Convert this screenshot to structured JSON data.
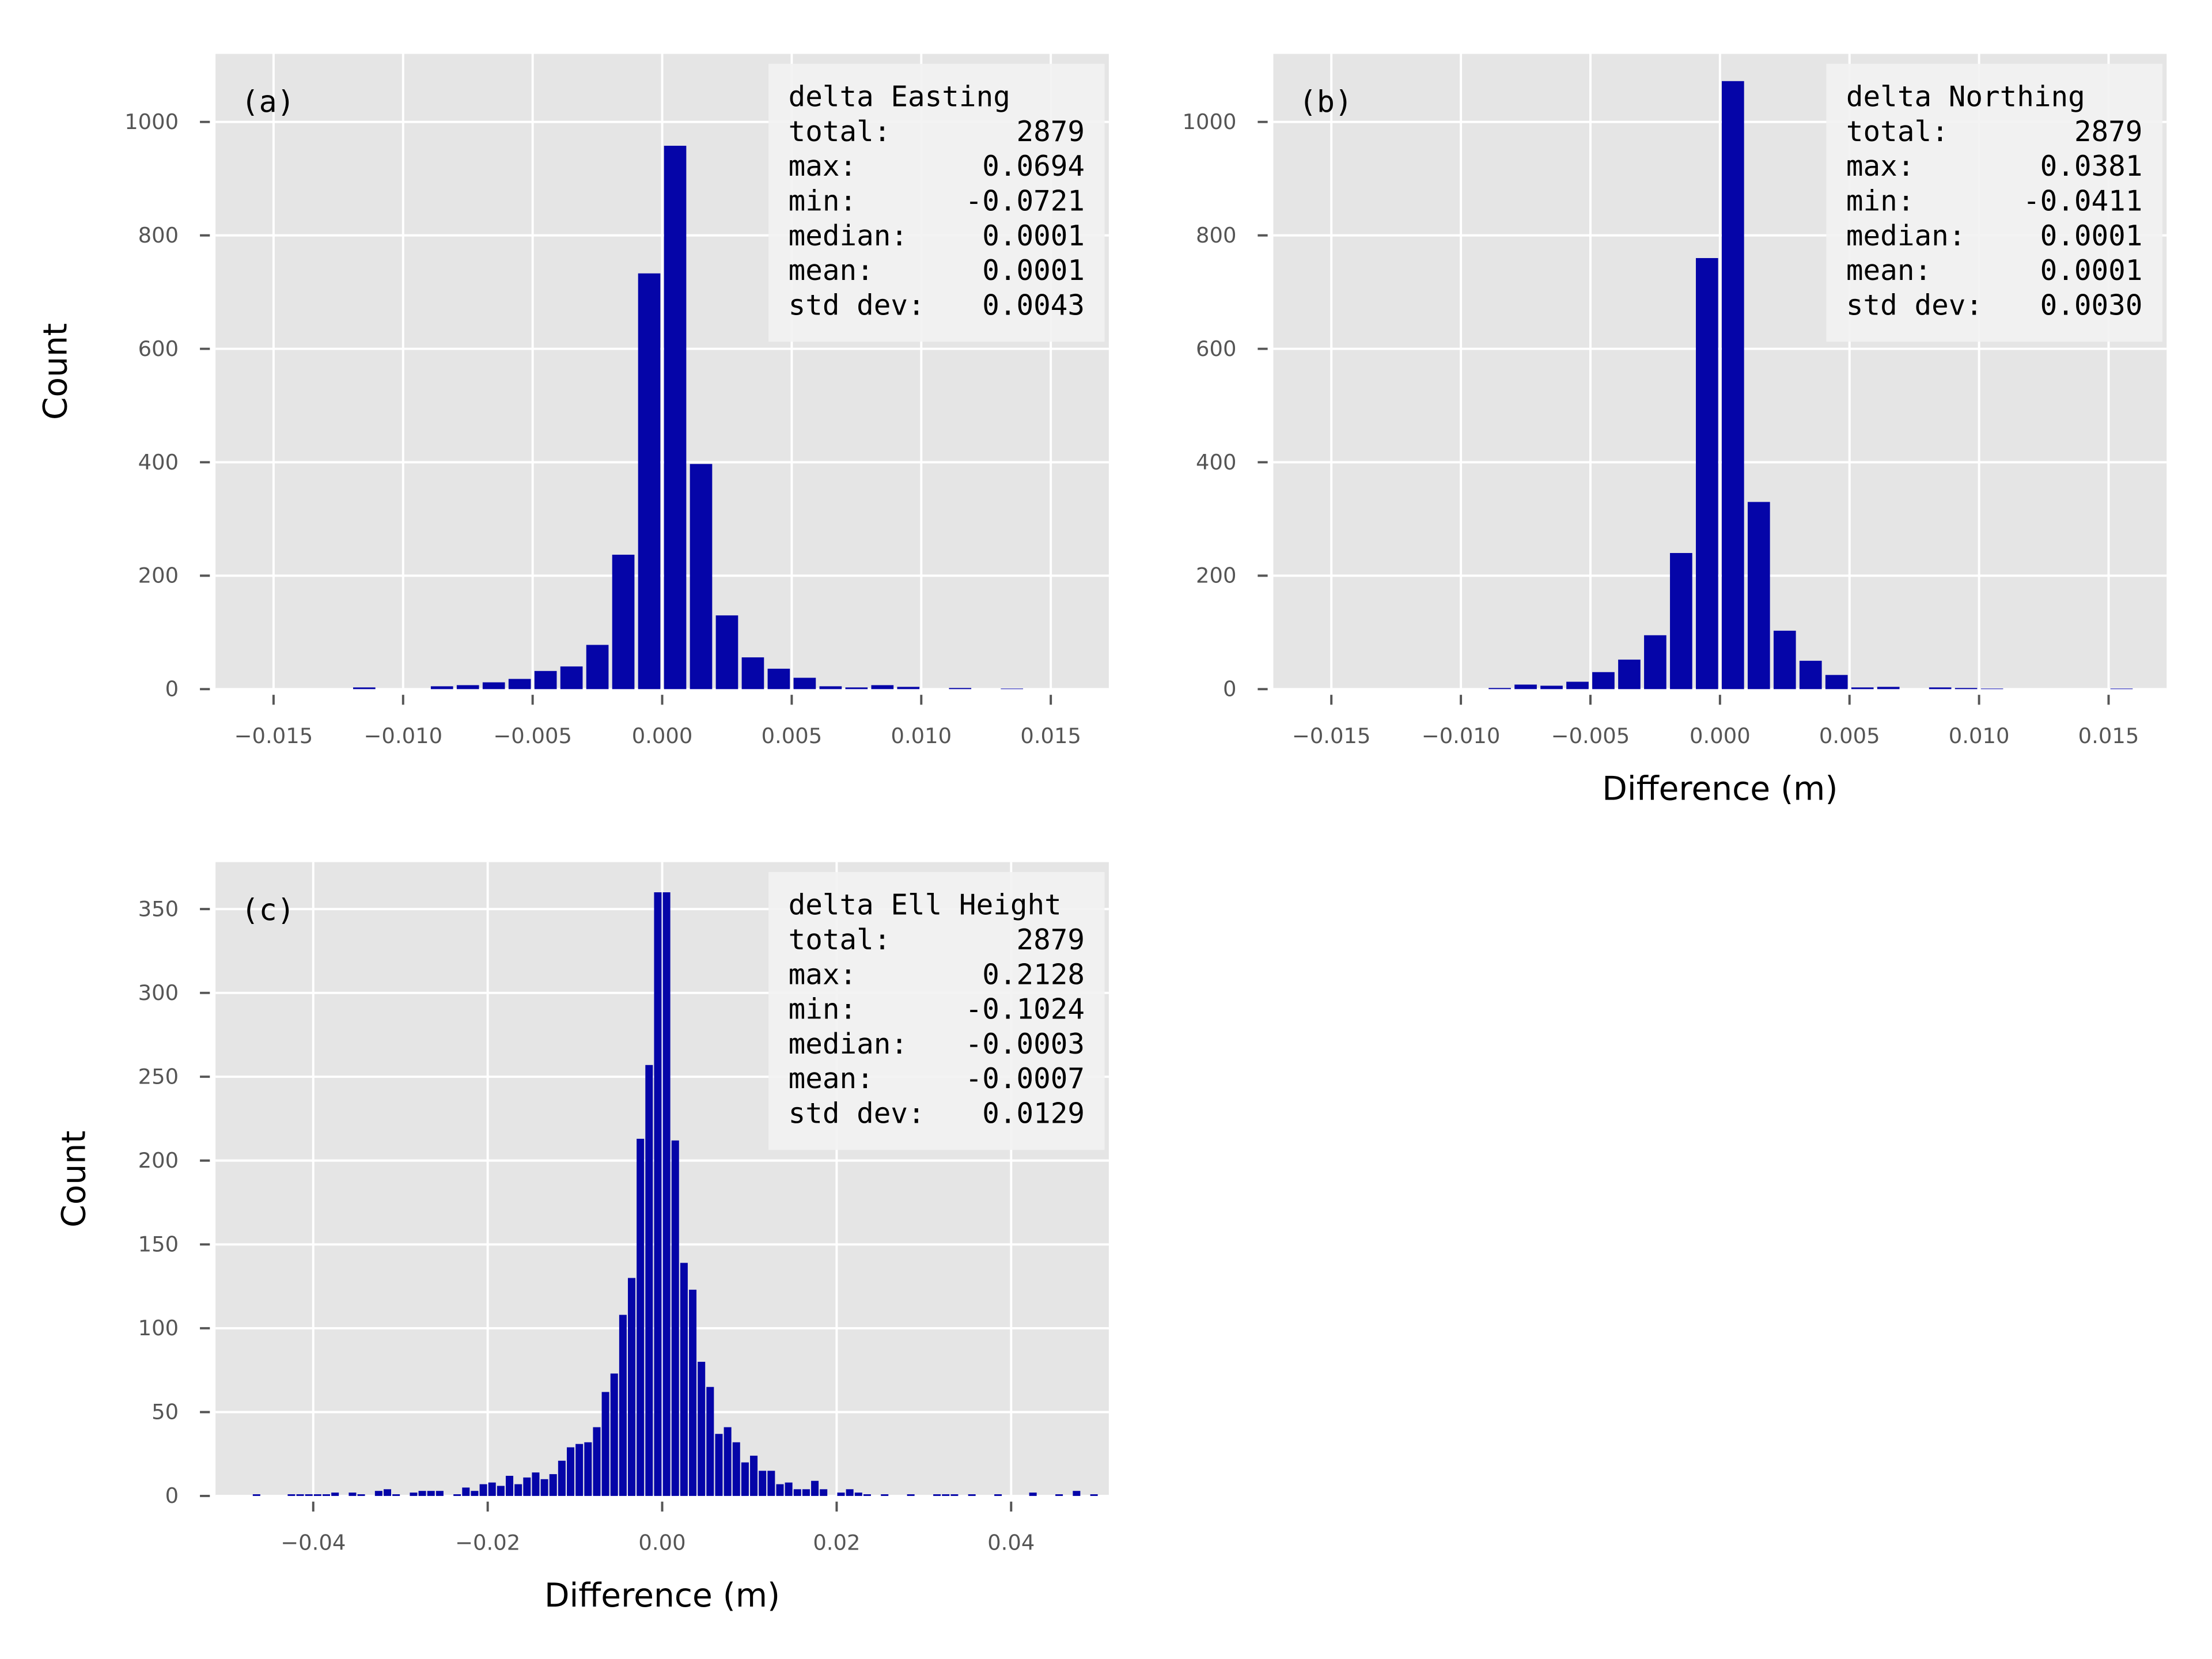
{
  "style": {
    "panel_bg": "#e5e5e5",
    "grid": "#ffffff",
    "bar_color": "#0505a8",
    "stats_bg": "#f2f2f2"
  },
  "chart_data": [
    {
      "type": "bar",
      "panel_label": "(a)",
      "xlabel": "",
      "ylabel": "Count",
      "xlim": [
        -0.01724,
        0.01724
      ],
      "ylim": [
        0,
        1120
      ],
      "xticks": [
        -0.015,
        -0.01,
        -0.005,
        0.0,
        0.005,
        0.01,
        0.015
      ],
      "xtick_labels": [
        "−0.015",
        "−0.010",
        "−0.005",
        "0.000",
        "0.005",
        "0.010",
        "0.015"
      ],
      "yticks": [
        0,
        200,
        400,
        600,
        800,
        1000
      ],
      "ytick_labels": [
        "0",
        "200",
        "400",
        "600",
        "800",
        "1000"
      ],
      "grid": true,
      "bin_width": 0.001,
      "bin_centers": [
        -0.0115,
        -0.0085,
        -0.0075,
        -0.0065,
        -0.0055,
        -0.0045,
        -0.0035,
        -0.0025,
        -0.0015,
        -0.0005,
        0.0005,
        0.0015,
        0.0025,
        0.0035,
        0.0045,
        0.0055,
        0.0065,
        0.0075,
        0.0085,
        0.0095,
        0.0115,
        0.0135
      ],
      "values": [
        3,
        5,
        7,
        12,
        18,
        32,
        40,
        78,
        237,
        733,
        958,
        397,
        130,
        56,
        36,
        20,
        5,
        3,
        7,
        4,
        2,
        1
      ],
      "stats": {
        "title": "delta Easting",
        "rows": [
          {
            "label": "total:",
            "value": "2879"
          },
          {
            "label": "max:",
            "value": "0.0694"
          },
          {
            "label": "min:",
            "value": "-0.0721"
          },
          {
            "label": "median:",
            "value": "0.0001"
          },
          {
            "label": "mean:",
            "value": "0.0001"
          },
          {
            "label": "std dev:",
            "value": "0.0043"
          }
        ]
      },
      "legend_position": "top-right"
    },
    {
      "type": "bar",
      "panel_label": "(b)",
      "xlabel": "Difference (m)",
      "ylabel": "",
      "xlim": [
        -0.01724,
        0.01724
      ],
      "ylim": [
        0,
        1120
      ],
      "xticks": [
        -0.015,
        -0.01,
        -0.005,
        0.0,
        0.005,
        0.01,
        0.015
      ],
      "xtick_labels": [
        "−0.015",
        "−0.010",
        "−0.005",
        "0.000",
        "0.005",
        "0.010",
        "0.015"
      ],
      "yticks": [
        0,
        200,
        400,
        600,
        800,
        1000
      ],
      "ytick_labels": [
        "0",
        "200",
        "400",
        "600",
        "800",
        "1000"
      ],
      "grid": true,
      "bin_width": 0.001,
      "bin_centers": [
        -0.0085,
        -0.0075,
        -0.0065,
        -0.0055,
        -0.0045,
        -0.0035,
        -0.0025,
        -0.0015,
        -0.0005,
        0.0005,
        0.0015,
        0.0025,
        0.0035,
        0.0045,
        0.0055,
        0.0065,
        0.0085,
        0.0095,
        0.0105,
        0.0155
      ],
      "values": [
        2,
        8,
        6,
        13,
        30,
        52,
        95,
        240,
        760,
        1072,
        330,
        103,
        50,
        25,
        3,
        4,
        3,
        2,
        1,
        1
      ],
      "stats": {
        "title": "delta Northing",
        "rows": [
          {
            "label": "total:",
            "value": "2879"
          },
          {
            "label": "max:",
            "value": "0.0381"
          },
          {
            "label": "min:",
            "value": "-0.0411"
          },
          {
            "label": "median:",
            "value": "0.0001"
          },
          {
            "label": "mean:",
            "value": "0.0001"
          },
          {
            "label": "std dev:",
            "value": "0.0030"
          }
        ]
      },
      "legend_position": "top-right"
    },
    {
      "type": "bar",
      "panel_label": "(c)",
      "xlabel": "Difference (m)",
      "ylabel": "Count",
      "xlim": [
        -0.0512,
        0.0512
      ],
      "ylim": [
        0,
        378
      ],
      "xticks": [
        -0.04,
        -0.02,
        0.0,
        0.02,
        0.04
      ],
      "xtick_labels": [
        "−0.04",
        "−0.02",
        "0.00",
        "0.02",
        "0.04"
      ],
      "yticks": [
        0,
        50,
        100,
        150,
        200,
        250,
        300,
        350
      ],
      "ytick_labels": [
        "0",
        "50",
        "100",
        "150",
        "200",
        "250",
        "300",
        "350"
      ],
      "grid": true,
      "bin_width": 0.001,
      "bin_centers": [
        -0.0465,
        -0.0425,
        -0.0415,
        -0.0405,
        -0.0395,
        -0.0385,
        -0.0375,
        -0.0355,
        -0.0345,
        -0.0325,
        -0.0315,
        -0.0305,
        -0.0285,
        -0.0275,
        -0.0265,
        -0.0255,
        -0.0235,
        -0.0225,
        -0.0215,
        -0.0205,
        -0.0195,
        -0.0185,
        -0.0175,
        -0.0165,
        -0.0155,
        -0.0145,
        -0.0135,
        -0.0125,
        -0.0115,
        -0.0105,
        -0.0095,
        -0.0085,
        -0.0075,
        -0.0065,
        -0.0055,
        -0.0045,
        -0.0035,
        -0.0025,
        -0.0015,
        -0.0005,
        0.0005,
        0.0015,
        0.0025,
        0.0035,
        0.0045,
        0.0055,
        0.0065,
        0.0075,
        0.0085,
        0.0095,
        0.0105,
        0.0115,
        0.0125,
        0.0135,
        0.0145,
        0.0155,
        0.0165,
        0.0175,
        0.0185,
        0.0205,
        0.0215,
        0.0225,
        0.0235,
        0.0255,
        0.0285,
        0.0315,
        0.0325,
        0.0335,
        0.0355,
        0.0385,
        0.0425,
        0.0455,
        0.0475,
        0.0495
      ],
      "values": [
        1,
        1,
        1,
        1,
        1,
        1,
        2,
        2,
        1,
        3,
        4,
        1,
        2,
        3,
        3,
        3,
        1,
        5,
        3,
        7,
        8,
        6,
        12,
        7,
        11,
        14,
        10,
        13,
        21,
        29,
        31,
        32,
        41,
        62,
        73,
        108,
        130,
        213,
        257,
        360,
        360,
        212,
        139,
        123,
        80,
        65,
        37,
        41,
        32,
        20,
        24,
        15,
        15,
        7,
        8,
        4,
        4,
        9,
        4,
        2,
        4,
        2,
        1,
        1,
        1,
        1,
        1,
        1,
        1,
        1,
        2,
        1,
        3,
        1
      ],
      "stats": {
        "title": "delta Ell Height",
        "rows": [
          {
            "label": "total:",
            "value": "2879"
          },
          {
            "label": "max:",
            "value": "0.2128"
          },
          {
            "label": "min:",
            "value": "-0.1024"
          },
          {
            "label": "median:",
            "value": "-0.0003"
          },
          {
            "label": "mean:",
            "value": "-0.0007"
          },
          {
            "label": "std dev:",
            "value": "0.0129"
          }
        ]
      },
      "legend_position": "top-right"
    }
  ]
}
